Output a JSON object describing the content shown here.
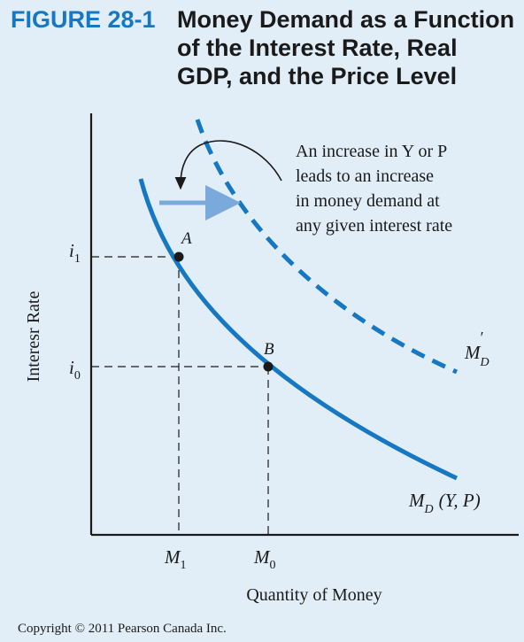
{
  "figure": {
    "label": "FIGURE 28-1",
    "title_lines": [
      "Money Demand as a Function",
      "of the Interest Rate, Real",
      "GDP, and the Price Level"
    ]
  },
  "chart_data": {
    "type": "line",
    "xlabel": "Quantity of Money",
    "ylabel": "Interesr Rate",
    "annotation_lines": [
      "An increase in Y or P",
      "leads to an increase",
      "in money demand at",
      "any given interest rate"
    ],
    "x_ticks": [
      {
        "main": "M",
        "sub": "1"
      },
      {
        "main": "M",
        "sub": "0"
      }
    ],
    "y_ticks": [
      {
        "main": "i",
        "sub": "1"
      },
      {
        "main": "i",
        "sub": "0"
      }
    ],
    "points": [
      {
        "label": "A"
      },
      {
        "label": "B"
      }
    ],
    "series": [
      {
        "name_main": "M",
        "name_sub": "D",
        "name_suffix": "(Y, P)",
        "style": "solid",
        "color": "#1677c2"
      },
      {
        "name_main": "M",
        "name_sub": "D",
        "name_sup": "′",
        "style": "dashed",
        "color": "#1677c2"
      }
    ],
    "arrow_color": "#7aa9dc"
  },
  "footer": {
    "copyright": "Copyright © 2011 Pearson Canada Inc."
  }
}
